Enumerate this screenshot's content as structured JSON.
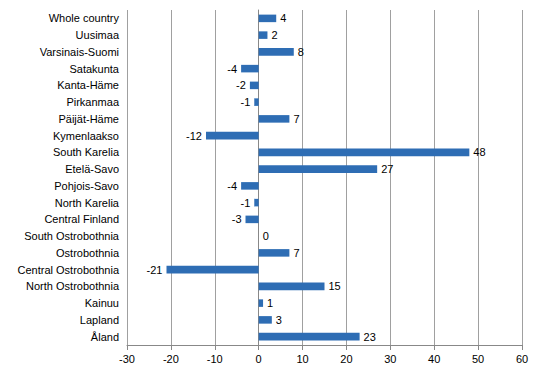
{
  "chart_data": {
    "type": "bar",
    "orientation": "horizontal",
    "categories": [
      "Whole country",
      "Uusimaa",
      "Varsinais-Suomi",
      "Satakunta",
      "Kanta-Häme",
      "Pirkanmaa",
      "Päijät-Häme",
      "Kymenlaakso",
      "South Karelia",
      "Etelä-Savo",
      "Pohjois-Savo",
      "North Karelia",
      "Central Finland",
      "South Ostrobothnia",
      "Ostrobothnia",
      "Central Ostrobothnia",
      "North Ostrobothnia",
      "Kainuu",
      "Lapland",
      "Åland"
    ],
    "values": [
      4,
      2,
      8,
      -4,
      -2,
      -1,
      7,
      -12,
      48,
      27,
      -4,
      -1,
      -3,
      0,
      7,
      -21,
      15,
      1,
      3,
      23
    ],
    "color": "#2e6db4",
    "xlim": [
      -30,
      60
    ],
    "xticks": [
      -30,
      -20,
      -10,
      0,
      10,
      20,
      30,
      40,
      50,
      60
    ],
    "grid": true,
    "data_labels": true
  }
}
